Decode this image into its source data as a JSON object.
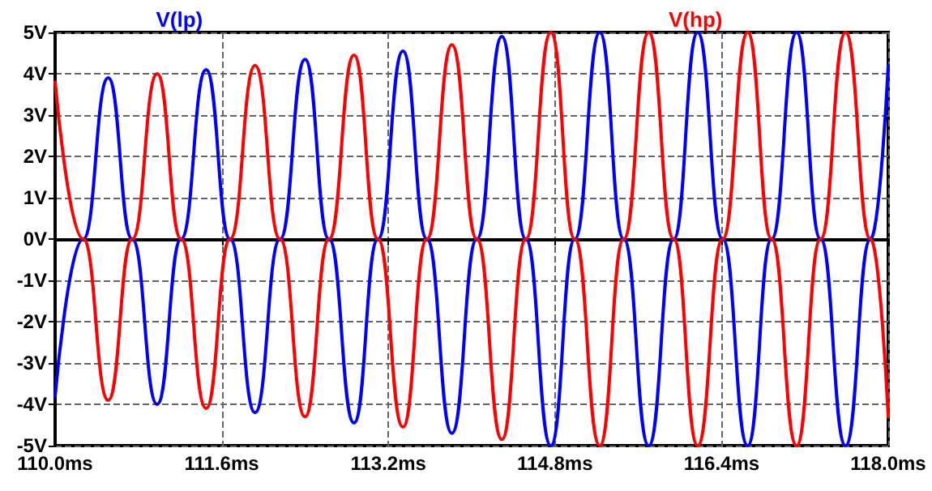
{
  "chart_data": {
    "type": "line",
    "xlim": [
      110,
      118
    ],
    "ylim": [
      -5,
      5
    ],
    "xticks": [
      {
        "value": 110,
        "label": "110.0ms"
      },
      {
        "value": 111.6,
        "label": "111.6ms"
      },
      {
        "value": 113.2,
        "label": "113.2ms"
      },
      {
        "value": 114.8,
        "label": "114.8ms"
      },
      {
        "value": 116.4,
        "label": "116.4ms"
      },
      {
        "value": 118,
        "label": "118.0ms"
      }
    ],
    "yticks": [
      {
        "value": -5,
        "label": "-5V"
      },
      {
        "value": -4,
        "label": "-4V"
      },
      {
        "value": -3,
        "label": "-3V"
      },
      {
        "value": -2,
        "label": "-2V"
      },
      {
        "value": -1,
        "label": "-1V"
      },
      {
        "value": 0,
        "label": "0V"
      },
      {
        "value": 1,
        "label": "1V"
      },
      {
        "value": 2,
        "label": "2V"
      },
      {
        "value": 3,
        "label": "3V"
      },
      {
        "value": 4,
        "label": "4V"
      },
      {
        "value": 5,
        "label": "5V"
      }
    ],
    "grid": true,
    "legend": "top",
    "marker": "none",
    "line_style": "solid",
    "series": [
      {
        "name": "V(lp)",
        "color": "#0000ff",
        "x": [
          110.0,
          110.27,
          110.51,
          110.74,
          110.98,
          111.21,
          111.45,
          111.68,
          111.92,
          112.16,
          112.4,
          112.63,
          112.87,
          113.1,
          113.34,
          113.57,
          113.81,
          114.05,
          114.29,
          114.52,
          114.76,
          114.99,
          115.23,
          115.46,
          115.7,
          115.94,
          116.17,
          116.41,
          116.65,
          116.88,
          117.12,
          117.35,
          117.59,
          117.83,
          118.0
        ],
        "values": [
          -3.8,
          0,
          3.9,
          0,
          -4.0,
          0,
          4.1,
          0,
          -4.2,
          0,
          4.35,
          0,
          -4.45,
          0,
          4.55,
          0,
          -4.7,
          0,
          4.9,
          0,
          -5,
          0,
          5,
          0,
          -5,
          0,
          5,
          0,
          -5,
          0,
          5,
          0,
          -5,
          0,
          4.2
        ]
      },
      {
        "name": "V(hp)",
        "color": "#ff0000",
        "x": [
          110.0,
          110.27,
          110.51,
          110.74,
          110.98,
          111.21,
          111.45,
          111.68,
          111.92,
          112.16,
          112.4,
          112.63,
          112.87,
          113.1,
          113.34,
          113.57,
          113.81,
          114.05,
          114.29,
          114.52,
          114.76,
          114.99,
          115.23,
          115.46,
          115.7,
          115.94,
          116.17,
          116.41,
          116.65,
          116.88,
          117.12,
          117.35,
          117.59,
          117.83,
          118.0
        ],
        "values": [
          3.8,
          0,
          -3.9,
          0,
          4.0,
          0,
          -4.1,
          0,
          4.2,
          0,
          -4.3,
          0,
          4.45,
          0,
          -4.55,
          0,
          4.7,
          0,
          -4.85,
          0,
          5,
          0,
          -5,
          0,
          5,
          0,
          -5,
          0,
          5,
          0,
          -5,
          0,
          5,
          0,
          -4.3
        ]
      }
    ]
  }
}
